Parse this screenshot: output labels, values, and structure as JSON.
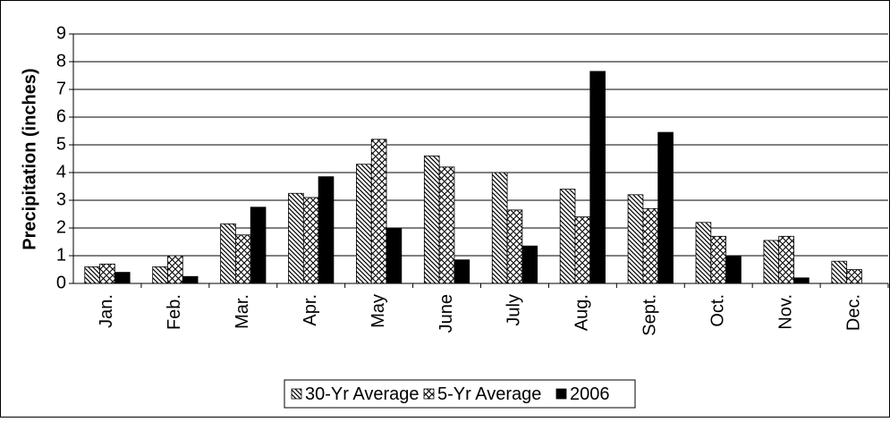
{
  "chart_data": {
    "type": "bar",
    "y_label": "Precipitation (inches)",
    "categories": [
      "Jan.",
      "Feb.",
      "Mar.",
      "Apr.",
      "May",
      "June",
      "July",
      "Aug.",
      "Sept.",
      "Oct.",
      "Nov.",
      "Dec."
    ],
    "series": [
      {
        "name": "30-Yr Average",
        "color": "#000000",
        "pattern": "diagonal",
        "values": [
          0.6,
          0.6,
          2.15,
          3.25,
          4.3,
          4.6,
          4.0,
          3.4,
          3.2,
          2.2,
          1.55,
          0.8
        ]
      },
      {
        "name": "5-Yr Average",
        "color": "#000000",
        "pattern": "crosshatch",
        "values": [
          0.7,
          1.0,
          1.75,
          3.1,
          5.2,
          4.2,
          2.65,
          2.4,
          2.7,
          1.7,
          1.7,
          0.5
        ]
      },
      {
        "name": "2006",
        "color": "#000000",
        "pattern": "solid",
        "values": [
          0.4,
          0.25,
          2.75,
          3.85,
          2.0,
          0.85,
          1.35,
          7.65,
          5.45,
          1.0,
          0.2,
          null
        ]
      }
    ],
    "ylim": [
      0,
      9
    ],
    "yticks": [
      0,
      1,
      2,
      3,
      4,
      5,
      6,
      7,
      8,
      9
    ],
    "grid": true,
    "legend": "bottom"
  }
}
